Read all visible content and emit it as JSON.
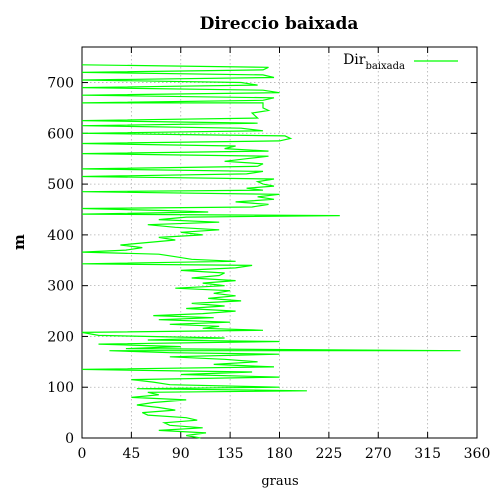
{
  "chart_data": {
    "type": "line",
    "title": "Direccio baixada",
    "xlabel": "graus",
    "ylabel": "m",
    "xlim": [
      0,
      360
    ],
    "ylim": [
      0,
      770
    ],
    "xticks": [
      0,
      45,
      90,
      135,
      180,
      225,
      270,
      315,
      360
    ],
    "yticks": [
      0,
      100,
      200,
      300,
      400,
      500,
      600,
      700
    ],
    "grid": true,
    "legend": {
      "position": "top-right",
      "main": "Dir",
      "sub": "baixada"
    },
    "series": [
      {
        "name": "Dir baixada",
        "color": "#00ff00",
        "points": [
          [
            108,
            0
          ],
          [
            95,
            5
          ],
          [
            113,
            10
          ],
          [
            70,
            15
          ],
          [
            110,
            20
          ],
          [
            80,
            25
          ],
          [
            75,
            30
          ],
          [
            105,
            35
          ],
          [
            95,
            40
          ],
          [
            60,
            45
          ],
          [
            55,
            50
          ],
          [
            85,
            55
          ],
          [
            70,
            60
          ],
          [
            50,
            65
          ],
          [
            65,
            70
          ],
          [
            95,
            75
          ],
          [
            45,
            80
          ],
          [
            70,
            85
          ],
          [
            60,
            90
          ],
          [
            205,
            93
          ],
          [
            50,
            97
          ],
          [
            180,
            100
          ],
          [
            80,
            105
          ],
          [
            65,
            110
          ],
          [
            45,
            115
          ],
          [
            180,
            120
          ],
          [
            90,
            125
          ],
          [
            155,
            130
          ],
          [
            0,
            135
          ],
          [
            175,
            140
          ],
          [
            120,
            145
          ],
          [
            160,
            150
          ],
          [
            130,
            155
          ],
          [
            80,
            160
          ],
          [
            180,
            165
          ],
          [
            80,
            168
          ],
          [
            25,
            172
          ],
          [
            345,
            172
          ],
          [
            40,
            176
          ],
          [
            90,
            180
          ],
          [
            15,
            185
          ],
          [
            180,
            190
          ],
          [
            60,
            193
          ],
          [
            130,
            197
          ],
          [
            15,
            202
          ],
          [
            0,
            208
          ],
          [
            165,
            212
          ],
          [
            110,
            216
          ],
          [
            125,
            220
          ],
          [
            80,
            224
          ],
          [
            135,
            228
          ],
          [
            70,
            233
          ],
          [
            120,
            237
          ],
          [
            65,
            241
          ],
          [
            110,
            245
          ],
          [
            140,
            250
          ],
          [
            95,
            255
          ],
          [
            130,
            260
          ],
          [
            100,
            265
          ],
          [
            145,
            270
          ],
          [
            115,
            275
          ],
          [
            140,
            280
          ],
          [
            120,
            285
          ],
          [
            135,
            290
          ],
          [
            85,
            295
          ],
          [
            130,
            300
          ],
          [
            110,
            305
          ],
          [
            140,
            310
          ],
          [
            100,
            315
          ],
          [
            125,
            320
          ],
          [
            130,
            325
          ],
          [
            90,
            330
          ],
          [
            140,
            335
          ],
          [
            155,
            340
          ],
          [
            0,
            343
          ],
          [
            140,
            348
          ],
          [
            100,
            352
          ],
          [
            85,
            357
          ],
          [
            70,
            362
          ],
          [
            0,
            366
          ],
          [
            40,
            370
          ],
          [
            55,
            375
          ],
          [
            35,
            380
          ],
          [
            60,
            385
          ],
          [
            85,
            390
          ],
          [
            70,
            395
          ],
          [
            110,
            400
          ],
          [
            90,
            405
          ],
          [
            125,
            410
          ],
          [
            85,
            415
          ],
          [
            60,
            420
          ],
          [
            125,
            425
          ],
          [
            70,
            430
          ],
          [
            95,
            435
          ],
          [
            235,
            438
          ],
          [
            0,
            441
          ],
          [
            115,
            445
          ],
          [
            75,
            448
          ],
          [
            0,
            452
          ],
          [
            155,
            455
          ],
          [
            170,
            460
          ],
          [
            140,
            465
          ],
          [
            175,
            470
          ],
          [
            160,
            475
          ],
          [
            180,
            480
          ],
          [
            0,
            485
          ],
          [
            165,
            488
          ],
          [
            150,
            492
          ],
          [
            175,
            496
          ],
          [
            165,
            500
          ],
          [
            160,
            505
          ],
          [
            175,
            510
          ],
          [
            0,
            515
          ],
          [
            150,
            520
          ],
          [
            165,
            525
          ],
          [
            0,
            530
          ],
          [
            160,
            535
          ],
          [
            165,
            540
          ],
          [
            130,
            545
          ],
          [
            150,
            550
          ],
          [
            170,
            555
          ],
          [
            0,
            560
          ],
          [
            170,
            565
          ],
          [
            130,
            570
          ],
          [
            140,
            575
          ],
          [
            0,
            580
          ],
          [
            180,
            585
          ],
          [
            190,
            590
          ],
          [
            185,
            595
          ],
          [
            0,
            600
          ],
          [
            165,
            605
          ],
          [
            145,
            610
          ],
          [
            0,
            615
          ],
          [
            160,
            620
          ],
          [
            0,
            625
          ],
          [
            160,
            630
          ],
          [
            155,
            640
          ],
          [
            170,
            645
          ],
          [
            165,
            650
          ],
          [
            165,
            660
          ],
          [
            0,
            660
          ],
          [
            165,
            665
          ],
          [
            175,
            670
          ],
          [
            0,
            675
          ],
          [
            180,
            680
          ],
          [
            165,
            685
          ],
          [
            0,
            690
          ],
          [
            160,
            695
          ],
          [
            145,
            700
          ],
          [
            0,
            705
          ],
          [
            175,
            710
          ],
          [
            165,
            715
          ],
          [
            0,
            720
          ],
          [
            165,
            725
          ],
          [
            170,
            730
          ],
          [
            0,
            735
          ]
        ]
      }
    ]
  }
}
